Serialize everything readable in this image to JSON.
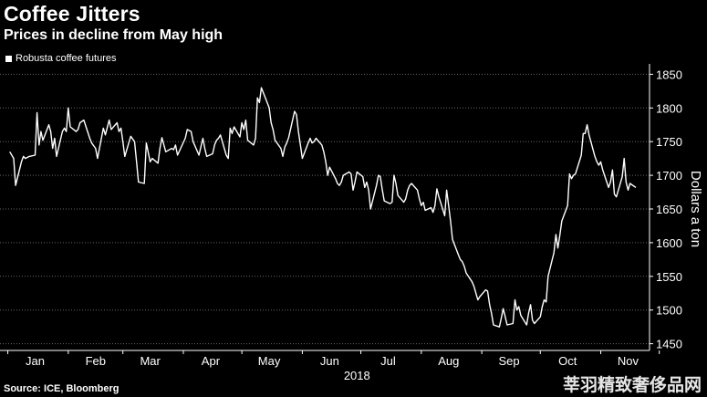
{
  "header": {
    "title": "Coffee Jitters",
    "subtitle": "Prices in decline from May high",
    "legend_label": "Robusta coffee futures"
  },
  "footer": {
    "source": "Source: ICE, Bloomberg",
    "watermark": "莘羽精致奢侈品网"
  },
  "colors": {
    "background": "#000000",
    "line": "#ffffff",
    "grid": "#666666"
  },
  "chart_data": {
    "type": "line",
    "title": "Coffee Jitters",
    "subtitle": "Prices in decline from May high",
    "ylabel": "Dollars a ton",
    "xlabel": "2018",
    "ylim": [
      1440,
      1860
    ],
    "yticks": [
      1450,
      1500,
      1550,
      1600,
      1650,
      1700,
      1750,
      1800,
      1850
    ],
    "month_ticks": [
      "Jan",
      "Feb",
      "Mar",
      "Apr",
      "May",
      "Jun",
      "Jul",
      "Aug",
      "Sep",
      "Oct",
      "Nov"
    ],
    "year_label": "2018",
    "grid": true,
    "legend_position": "top-left",
    "series": [
      {
        "name": "Robusta coffee futures",
        "x": [
          "2018-01-02",
          "2018-01-04",
          "2018-01-05",
          "2018-01-08",
          "2018-01-09",
          "2018-01-10",
          "2018-01-12",
          "2018-01-15",
          "2018-01-16",
          "2018-01-17",
          "2018-01-18",
          "2018-01-19",
          "2018-01-22",
          "2018-01-23",
          "2018-01-24",
          "2018-01-25",
          "2018-01-26",
          "2018-01-29",
          "2018-01-30",
          "2018-01-31",
          "2018-02-01",
          "2018-02-02",
          "2018-02-05",
          "2018-02-06",
          "2018-02-07",
          "2018-02-09",
          "2018-02-12",
          "2018-02-13",
          "2018-02-15",
          "2018-02-16",
          "2018-02-19",
          "2018-02-20",
          "2018-02-22",
          "2018-02-23",
          "2018-02-26",
          "2018-02-27",
          "2018-02-28",
          "2018-03-01",
          "2018-03-02",
          "2018-03-05",
          "2018-03-07",
          "2018-03-08",
          "2018-03-09",
          "2018-03-12",
          "2018-03-13",
          "2018-03-15",
          "2018-03-16",
          "2018-03-19",
          "2018-03-20",
          "2018-03-21",
          "2018-03-23",
          "2018-03-26",
          "2018-03-27",
          "2018-03-28",
          "2018-03-29",
          "2018-04-02",
          "2018-04-03",
          "2018-04-05",
          "2018-04-06",
          "2018-04-09",
          "2018-04-11",
          "2018-04-12",
          "2018-04-13",
          "2018-04-16",
          "2018-04-17",
          "2018-04-18",
          "2018-04-19",
          "2018-04-20",
          "2018-04-23",
          "2018-04-24",
          "2018-04-25",
          "2018-04-26",
          "2018-04-27",
          "2018-04-30",
          "2018-05-01",
          "2018-05-02",
          "2018-05-03",
          "2018-05-04",
          "2018-05-07",
          "2018-05-08",
          "2018-05-09",
          "2018-05-10",
          "2018-05-11",
          "2018-05-14",
          "2018-05-15",
          "2018-05-16",
          "2018-05-17",
          "2018-05-18",
          "2018-05-21",
          "2018-05-22",
          "2018-05-23",
          "2018-05-24",
          "2018-05-25",
          "2018-05-28",
          "2018-05-29",
          "2018-05-30",
          "2018-05-31",
          "2018-06-01",
          "2018-06-04",
          "2018-06-05",
          "2018-06-06",
          "2018-06-07",
          "2018-06-08",
          "2018-06-11",
          "2018-06-12",
          "2018-06-13",
          "2018-06-14",
          "2018-06-15",
          "2018-06-18",
          "2018-06-19",
          "2018-06-20",
          "2018-06-21",
          "2018-06-22",
          "2018-06-25",
          "2018-06-26",
          "2018-06-27",
          "2018-06-28",
          "2018-06-29",
          "2018-07-02",
          "2018-07-03",
          "2018-07-04",
          "2018-07-05",
          "2018-07-06",
          "2018-07-09",
          "2018-07-10",
          "2018-07-11",
          "2018-07-12",
          "2018-07-13",
          "2018-07-16",
          "2018-07-17",
          "2018-07-18",
          "2018-07-19",
          "2018-07-20",
          "2018-07-23",
          "2018-07-24",
          "2018-07-25",
          "2018-07-26",
          "2018-07-27",
          "2018-07-30",
          "2018-07-31",
          "2018-08-01",
          "2018-08-02",
          "2018-08-03",
          "2018-08-06",
          "2018-08-07",
          "2018-08-08",
          "2018-08-09",
          "2018-08-10",
          "2018-08-13",
          "2018-08-14",
          "2018-08-15",
          "2018-08-16",
          "2018-08-17",
          "2018-08-20",
          "2018-08-21",
          "2018-08-22",
          "2018-08-23",
          "2018-08-24",
          "2018-08-27",
          "2018-08-28",
          "2018-08-29",
          "2018-08-30",
          "2018-08-31",
          "2018-09-03",
          "2018-09-04",
          "2018-09-05",
          "2018-09-06",
          "2018-09-07",
          "2018-09-10",
          "2018-09-11",
          "2018-09-12",
          "2018-09-13",
          "2018-09-14",
          "2018-09-17",
          "2018-09-18",
          "2018-09-19",
          "2018-09-20",
          "2018-09-21",
          "2018-09-24",
          "2018-09-25",
          "2018-09-26",
          "2018-09-27",
          "2018-09-28",
          "2018-10-01",
          "2018-10-02",
          "2018-10-03",
          "2018-10-04",
          "2018-10-05",
          "2018-10-08",
          "2018-10-09",
          "2018-10-10",
          "2018-10-11",
          "2018-10-12",
          "2018-10-15",
          "2018-10-16",
          "2018-10-17",
          "2018-10-18",
          "2018-10-19",
          "2018-10-22",
          "2018-10-23",
          "2018-10-24",
          "2018-10-25",
          "2018-10-26",
          "2018-10-29",
          "2018-10-30",
          "2018-10-31",
          "2018-11-01",
          "2018-11-02",
          "2018-11-05",
          "2018-11-06",
          "2018-11-07",
          "2018-11-08",
          "2018-11-09",
          "2018-11-12",
          "2018-11-13",
          "2018-11-14",
          "2018-11-15",
          "2018-11-16",
          "2018-11-19"
        ],
        "values": [
          1735,
          1725,
          1685,
          1720,
          1728,
          1725,
          1728,
          1730,
          1793,
          1745,
          1765,
          1752,
          1775,
          1765,
          1740,
          1755,
          1728,
          1765,
          1770,
          1765,
          1800,
          1772,
          1765,
          1768,
          1778,
          1782,
          1755,
          1748,
          1740,
          1725,
          1770,
          1760,
          1782,
          1768,
          1778,
          1765,
          1770,
          1750,
          1728,
          1758,
          1750,
          1720,
          1690,
          1688,
          1748,
          1720,
          1725,
          1718,
          1740,
          1756,
          1735,
          1740,
          1738,
          1745,
          1730,
          1755,
          1768,
          1765,
          1750,
          1730,
          1755,
          1740,
          1728,
          1732,
          1745,
          1752,
          1755,
          1760,
          1730,
          1725,
          1770,
          1762,
          1772,
          1757,
          1778,
          1768,
          1782,
          1752,
          1745,
          1755,
          1815,
          1808,
          1830,
          1808,
          1800,
          1778,
          1768,
          1752,
          1740,
          1728,
          1742,
          1748,
          1756,
          1795,
          1790,
          1765,
          1745,
          1725,
          1748,
          1755,
          1748,
          1750,
          1755,
          1745,
          1735,
          1720,
          1700,
          1712,
          1695,
          1688,
          1685,
          1690,
          1700,
          1705,
          1702,
          1678,
          1690,
          1705,
          1698,
          1682,
          1690,
          1678,
          1650,
          1685,
          1700,
          1698,
          1678,
          1662,
          1658,
          1660,
          1700,
          1688,
          1670,
          1660,
          1665,
          1678,
          1685,
          1688,
          1678,
          1665,
          1655,
          1660,
          1648,
          1652,
          1645,
          1655,
          1680,
          1668,
          1640,
          1678,
          1655,
          1632,
          1605,
          1582,
          1575,
          1572,
          1565,
          1555,
          1542,
          1535,
          1525,
          1515,
          1520,
          1530,
          1528,
          1508,
          1495,
          1478,
          1475,
          1488,
          1502,
          1490,
          1478,
          1480,
          1515,
          1500,
          1505,
          1492,
          1478,
          1495,
          1508,
          1485,
          1480,
          1490,
          1505,
          1515,
          1512,
          1550,
          1585,
          1612,
          1592,
          1610,
          1632,
          1655,
          1702,
          1695,
          1700,
          1702,
          1730,
          1762,
          1762,
          1775,
          1760,
          1728,
          1720,
          1715,
          1720,
          1708,
          1682,
          1690,
          1708,
          1672,
          1668,
          1698,
          1725,
          1690,
          1678,
          1688,
          1682
        ]
      }
    ]
  }
}
